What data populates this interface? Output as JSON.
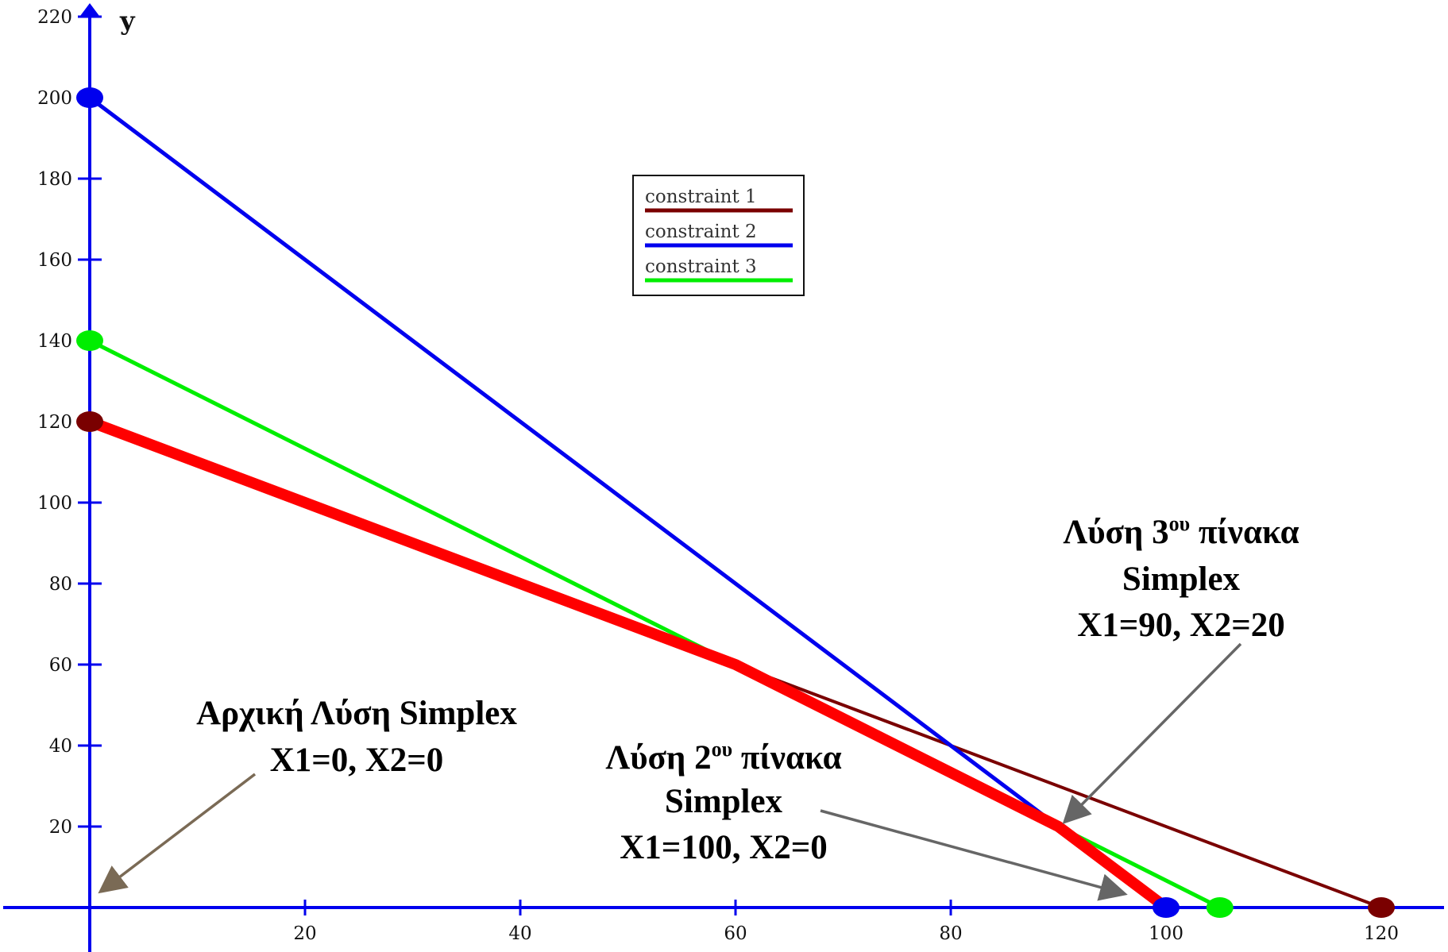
{
  "chart_data": {
    "type": "line",
    "ylabel": "y",
    "xlim": [
      0,
      125
    ],
    "ylim": [
      0,
      220
    ],
    "x_ticks": [
      20,
      40,
      60,
      80,
      100,
      120
    ],
    "y_ticks": [
      20,
      40,
      60,
      80,
      100,
      120,
      140,
      160,
      180,
      200,
      220
    ],
    "legend_position": "top-center",
    "series": [
      {
        "name": "constraint 1",
        "color": "#7a0000",
        "points": [
          [
            0,
            120
          ],
          [
            120,
            0
          ]
        ]
      },
      {
        "name": "constraint 2",
        "color": "#0000ee",
        "points": [
          [
            0,
            200
          ],
          [
            100,
            0
          ]
        ]
      },
      {
        "name": "constraint 3",
        "color": "#00ee00",
        "points": [
          [
            0,
            140
          ],
          [
            105,
            0
          ]
        ]
      }
    ],
    "feasible_boundary": {
      "color": "#ff0000",
      "points": [
        [
          0,
          120
        ],
        [
          60,
          60
        ],
        [
          90,
          20
        ],
        [
          100,
          0
        ]
      ]
    },
    "endpoints": [
      {
        "x": 0,
        "y": 120,
        "color": "#7a0000"
      },
      {
        "x": 120,
        "y": 0,
        "color": "#7a0000"
      },
      {
        "x": 0,
        "y": 200,
        "color": "#0000ee"
      },
      {
        "x": 100,
        "y": 0,
        "color": "#0000ee"
      },
      {
        "x": 0,
        "y": 140,
        "color": "#00ee00"
      },
      {
        "x": 105,
        "y": 0,
        "color": "#00ee00"
      }
    ],
    "annotations": [
      {
        "lines": [
          "Αρχική Λύση Simplex",
          "X1=0, X2=0"
        ],
        "target": [
          0,
          0
        ],
        "arrow_color": "#7a6a55"
      },
      {
        "line1_pre": "Λύση 2",
        "line1_sup": "ου",
        "line1_post": " πίνακα",
        "lines": [
          "Simplex",
          "X1=100, X2=0"
        ],
        "target": [
          100,
          0
        ],
        "arrow_color": "#666666"
      },
      {
        "line1_pre": "Λύση 3",
        "line1_sup": "ου",
        "line1_post": " πίνακα",
        "lines": [
          "Simplex",
          "X1=90, X2=20"
        ],
        "target": [
          90,
          20
        ],
        "arrow_color": "#666666"
      }
    ]
  }
}
